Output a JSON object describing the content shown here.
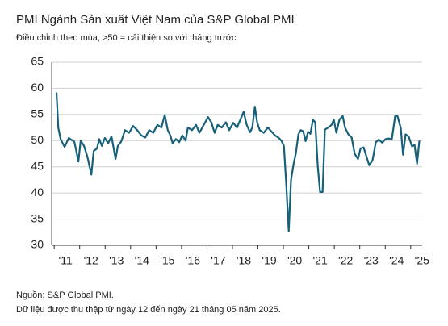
{
  "chart_data": {
    "type": "line",
    "title": "PMI Ngành Sản xuất Việt Nam của S&P Global PMI",
    "subtitle": "Điều chỉnh theo mùa, >50 = cải thiện so với tháng trước",
    "source": "Nguồn: S&P Global PMI.",
    "note": "Dữ liệu được thu thập từ ngày 12 đến ngày 21 tháng 05 năm 2025.",
    "x": [
      2011.09,
      2011.16,
      2011.25,
      2011.41,
      2011.57,
      2011.79,
      2011.89,
      2011.95,
      2012.04,
      2012.17,
      2012.3,
      2012.46,
      2012.55,
      2012.68,
      2012.77,
      2012.87,
      2012.99,
      2013.12,
      2013.25,
      2013.41,
      2013.5,
      2013.63,
      2013.78,
      2013.94,
      2014.1,
      2014.26,
      2014.42,
      2014.58,
      2014.73,
      2014.89,
      2015.05,
      2015.21,
      2015.34,
      2015.46,
      2015.56,
      2015.65,
      2015.78,
      2015.91,
      2016.03,
      2016.16,
      2016.25,
      2016.41,
      2016.57,
      2016.7,
      2016.85,
      2017.04,
      2017.17,
      2017.3,
      2017.42,
      2017.58,
      2017.74,
      2017.87,
      2018.03,
      2018.18,
      2018.31,
      2018.44,
      2018.56,
      2018.69,
      2018.78,
      2018.88,
      2018.97,
      2019.07,
      2019.23,
      2019.39,
      2019.54,
      2019.67,
      2019.8,
      2019.92,
      2020.02,
      2020.11,
      2020.21,
      2020.3,
      2020.4,
      2020.49,
      2020.59,
      2020.68,
      2020.78,
      2020.87,
      2020.97,
      2021.06,
      2021.16,
      2021.25,
      2021.35,
      2021.44,
      2021.54,
      2021.63,
      2021.76,
      2021.89,
      2021.98,
      2022.08,
      2022.2,
      2022.33,
      2022.42,
      2022.55,
      2022.68,
      2022.8,
      2022.93,
      2023.03,
      2023.15,
      2023.28,
      2023.37,
      2023.5,
      2023.63,
      2023.75,
      2023.88,
      2024.01,
      2024.13,
      2024.26,
      2024.39,
      2024.48,
      2024.61,
      2024.7,
      2024.8,
      2024.92,
      2025.05,
      2025.15,
      2025.25,
      2025.34
    ],
    "series": [
      {
        "color": "#17607a",
        "values": [
          59.2,
          52.5,
          50.3,
          48.8,
          50.5,
          49.8,
          47.5,
          46,
          50,
          49,
          47,
          43.5,
          48,
          48.5,
          50.3,
          49,
          50.5,
          49.5,
          50.8,
          46.5,
          49,
          49.8,
          52,
          51.5,
          52.8,
          52,
          51,
          50.6,
          52,
          51.5,
          53,
          52.5,
          54.9,
          52,
          51,
          49.5,
          50.3,
          49.7,
          51,
          50,
          52.5,
          52,
          53,
          51.5,
          52.8,
          54.5,
          53.5,
          51.5,
          53,
          52.5,
          53.5,
          52,
          53.4,
          52.5,
          54,
          55.5,
          53,
          51.6,
          52.5,
          56.5,
          53.5,
          52,
          51.5,
          52.5,
          51.7,
          51,
          50.6,
          50,
          49,
          41.9,
          32.7,
          42.5,
          45.5,
          47.6,
          51.2,
          52,
          51.8,
          49.9,
          51.7,
          51.3,
          54,
          53.5,
          45.1,
          40.2,
          40.2,
          52.1,
          52.5,
          53,
          54,
          51.5,
          54,
          54.7,
          52.5,
          51.2,
          50.6,
          47.5,
          46.5,
          48.5,
          48.7,
          46.7,
          45.3,
          46.2,
          49.7,
          50.2,
          49.6,
          50.3,
          50.4,
          50.3,
          54.7,
          54.7,
          52.4,
          47.3,
          51.2,
          50.8,
          48.9,
          49.2,
          45.6,
          50
        ]
      }
    ],
    "xlim": [
      2010.9,
      2025.45
    ],
    "xticks": [
      {
        "value": 2011,
        "label": "'11"
      },
      {
        "value": 2012,
        "label": "'12"
      },
      {
        "value": 2013,
        "label": "'13"
      },
      {
        "value": 2014,
        "label": "'14"
      },
      {
        "value": 2015,
        "label": "'15"
      },
      {
        "value": 2016,
        "label": "'16"
      },
      {
        "value": 2017,
        "label": "'17"
      },
      {
        "value": 2018,
        "label": "'18"
      },
      {
        "value": 2019,
        "label": "'19"
      },
      {
        "value": 2020,
        "label": "'20"
      },
      {
        "value": 2021,
        "label": "'21"
      },
      {
        "value": 2022,
        "label": "'22"
      },
      {
        "value": 2023,
        "label": "'23"
      },
      {
        "value": 2024,
        "label": "'24"
      },
      {
        "value": 2025,
        "label": "'25"
      }
    ],
    "ylim": [
      30,
      65
    ],
    "yticks": [
      30,
      35,
      40,
      45,
      50,
      55,
      60,
      65
    ],
    "grid": true
  }
}
